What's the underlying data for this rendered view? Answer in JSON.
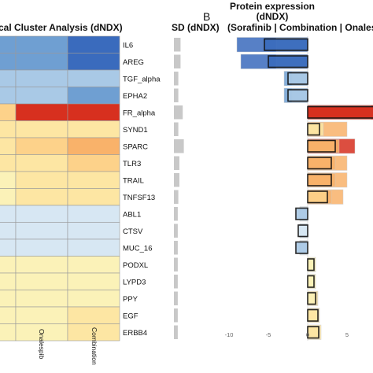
{
  "panel_a": {
    "title": "cal Cluster Analysis (dNDX)",
    "sd_title": "SD (dNDX)",
    "column_labels": [
      "Onalespib",
      "Combination"
    ]
  },
  "panel_b": {
    "letter": "B",
    "title_lines": [
      "Protein expression",
      "(dNDX)",
      "(Sorafinib | Combination | Onales"
    ],
    "x_ticks": [
      "-10",
      "-5",
      "0",
      "5"
    ]
  },
  "colors": {
    "strong_blue": "#3a6bbd",
    "mid_blue": "#6f9fd2",
    "light_blue": "#a9c9e6",
    "pale_blue": "#d7e7f3",
    "pale_yellow": "#fbf2b8",
    "light_yellow": "#fde6a3",
    "light_orange": "#fdd28a",
    "orange": "#f9b26a",
    "red": "#d7301f",
    "sd_bar": "#c8c8c8"
  },
  "chart_data": [
    {
      "type": "heatmap",
      "title": "cal Cluster Analysis (dNDX)",
      "rows": [
        "IL6",
        "AREG",
        "TGF_alpha",
        "EPHA2",
        "FR_alpha",
        "SYND1",
        "SPARC",
        "TLR3",
        "TRAIL",
        "TNFSF13",
        "ABL1",
        "CTSV",
        "MUC_16",
        "PODXL",
        "LYPD3",
        "PPY",
        "EGF",
        "ERBB4"
      ],
      "columns": [
        "",
        "Onalespib",
        "Combination"
      ],
      "values": [
        [
          -4,
          -3,
          -6
        ],
        [
          -4,
          -3,
          -5.5
        ],
        [
          -2,
          -1.5,
          -2.5
        ],
        [
          -2,
          -1.5,
          -3
        ],
        [
          2.5,
          8,
          8
        ],
        [
          1.5,
          1.5,
          2
        ],
        [
          2,
          2.5,
          4
        ],
        [
          1.5,
          2,
          2.5
        ],
        [
          1,
          1.5,
          2
        ],
        [
          1,
          1.5,
          2
        ],
        [
          -0.5,
          -0.8,
          -1.2
        ],
        [
          -0.5,
          -0.8,
          -1
        ],
        [
          -0.5,
          -0.8,
          -1.2
        ],
        [
          0.5,
          0.8,
          0.8
        ],
        [
          0.5,
          0.8,
          0.8
        ],
        [
          0.5,
          0.8,
          0.9
        ],
        [
          0.5,
          1,
          1.3
        ],
        [
          0.5,
          1,
          1.4
        ]
      ],
      "sd_title": "SD (dNDX)",
      "sd_values": [
        1.2,
        1.2,
        0.8,
        0.8,
        1.6,
        0.8,
        1.8,
        1.0,
        1.0,
        0.8,
        0.7,
        0.7,
        0.7,
        0.7,
        0.7,
        0.7,
        0.7,
        0.7
      ]
    },
    {
      "type": "bar",
      "title": "Protein expression (dNDX) (Sorafinib | Combination | Onales",
      "categories": [
        "IL6",
        "AREG",
        "TGF_alpha",
        "EPHA2",
        "FR_alpha",
        "SYND1",
        "SPARC",
        "TLR3",
        "TRAIL",
        "TNFSF13",
        "ABL1",
        "CTSV",
        "MUC_16",
        "PODXL",
        "LYPD3",
        "PPY",
        "EGF",
        "ERBB4"
      ],
      "series": [
        {
          "values": [
            -9,
            -8.5,
            -3,
            -3,
            13,
            5,
            6,
            5,
            5,
            4.5,
            -1,
            -1,
            -1,
            1,
            1,
            1.3,
            1.5,
            1.7
          ]
        },
        {
          "values": [
            -5.5,
            -5,
            -2.5,
            -2.5,
            10,
            1.5,
            3.5,
            3,
            3,
            2.5,
            -1.5,
            -1.2,
            -1.5,
            0.8,
            0.8,
            1,
            1.3,
            1.4
          ]
        },
        {
          "values": [
            -4,
            -4,
            -2,
            -2,
            8,
            2,
            4,
            3.5,
            3.5,
            3,
            -1,
            -1,
            -1,
            1,
            1,
            1.2,
            1.4,
            1.5
          ]
        }
      ],
      "xlim": [
        -11,
        11
      ],
      "x_ticks": [
        -10,
        -5,
        0,
        5
      ]
    }
  ]
}
